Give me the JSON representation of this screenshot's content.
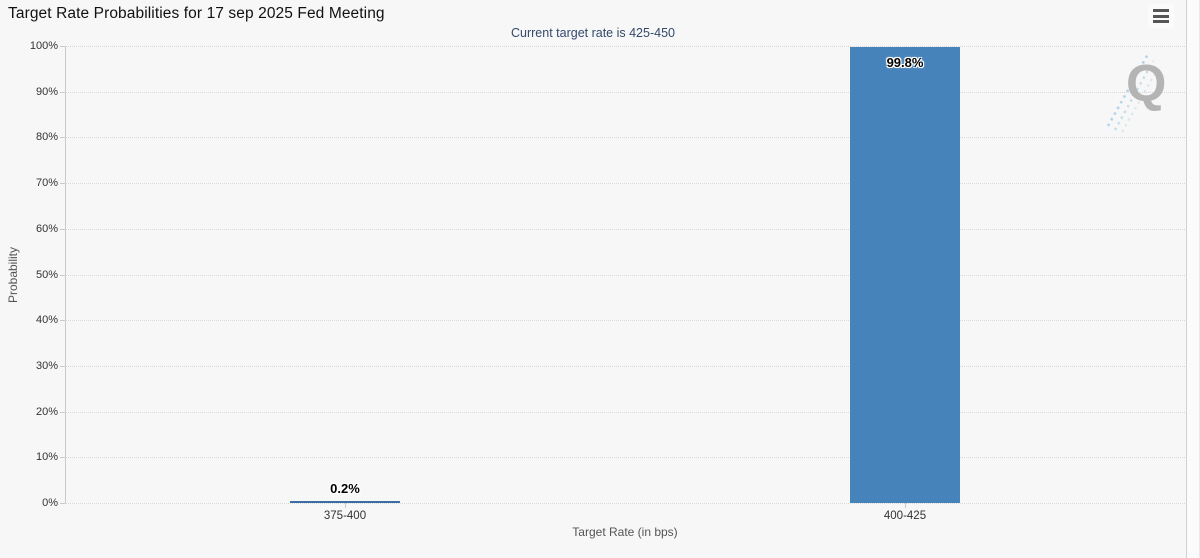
{
  "header": {
    "title": "Target Rate Probabilities for 17 sep 2025 Fed Meeting",
    "menu_icon": "hamburger-icon"
  },
  "subtitle": "Current target rate is 425-450",
  "watermark_letter": "Q",
  "colors": {
    "background": "#f7f7f7",
    "bar_fill": "#4683ba",
    "subtitle_text": "#33496b",
    "axis_label_text": "#333333",
    "axis_title_text": "#555555",
    "gridline": "#d8d8d8",
    "axis_line": "#c9c9c9",
    "watermark_gray": "#b4b4b4",
    "watermark_blue": "#aed1e6"
  },
  "chart_data": {
    "type": "bar",
    "title": "Target Rate Probabilities for 17 sep 2025 Fed Meeting",
    "subtitle": "Current target rate is 425-450",
    "categories": [
      "375-400",
      "400-425"
    ],
    "values": [
      0.2,
      99.8
    ],
    "value_labels": [
      "0.2%",
      "99.8%"
    ],
    "xlabel": "Target Rate (in bps)",
    "ylabel": "Probability",
    "ylim": [
      0,
      100
    ],
    "ytick_step": 10,
    "ytick_labels": [
      "0%",
      "10%",
      "20%",
      "30%",
      "40%",
      "50%",
      "60%",
      "70%",
      "80%",
      "90%",
      "100%"
    ],
    "grid": "horizontal-dotted",
    "legend": "none"
  }
}
